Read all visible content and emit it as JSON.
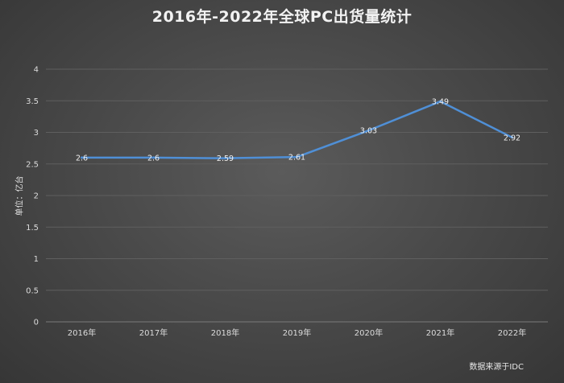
{
  "title": "2016年-2022年全球PC出货量统计",
  "source_note": "数据来源于IDC",
  "chart_data": {
    "type": "line",
    "title": "2016年-2022年全球PC出货量统计",
    "xlabel": "",
    "ylabel": "单位：亿台",
    "categories": [
      "2016年",
      "2017年",
      "2018年",
      "2019年",
      "2020年",
      "2021年",
      "2022年"
    ],
    "series": [
      {
        "values": [
          2.6,
          2.6,
          2.59,
          2.61,
          3.03,
          3.49,
          2.92
        ],
        "color": "#4f8fd6"
      }
    ],
    "data_labels": [
      "2.6",
      "2.6",
      "2.59",
      "2.61",
      "3.03",
      "3.49",
      "2.92"
    ],
    "y_ticks": [
      0,
      0.5,
      1,
      1.5,
      2,
      2.5,
      3,
      3.5,
      4
    ],
    "y_tick_labels": [
      "0",
      "0.5",
      "1",
      "1.5",
      "2",
      "2.5",
      "3",
      "3.5",
      "4"
    ],
    "ylim": [
      0,
      4
    ],
    "grid": true,
    "legend": "none",
    "colors": {
      "gridline": "#5f5f5f",
      "axis": "#7a7a7a",
      "line": "#4f8fd6"
    }
  }
}
